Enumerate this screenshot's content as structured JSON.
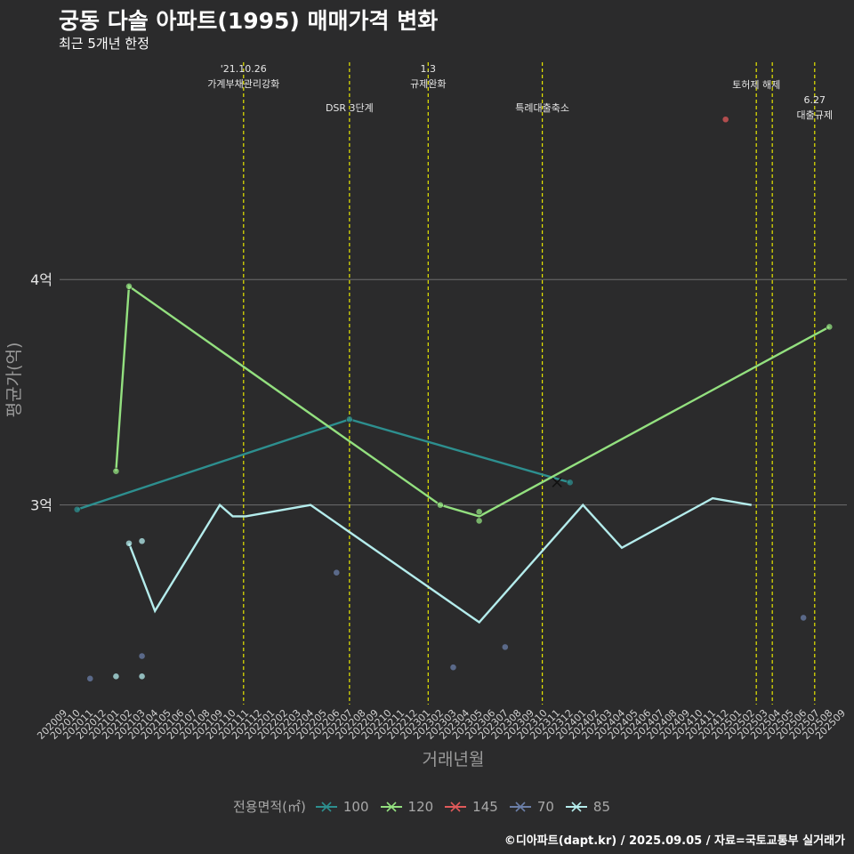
{
  "chart_data": {
    "type": "line",
    "title": "궁동 다솔 아파트(1995) 매매가격 변화",
    "subtitle": "최근 5개년 한정",
    "xlabel": "거래년월",
    "ylabel": "평균가(억)",
    "caption": "©디아파트(dapt.kr) / 2025.09.05 / 자료=국토교통부 실거래가",
    "y_ticks": [
      {
        "value": 3,
        "label": "3억"
      },
      {
        "value": 4,
        "label": "4억"
      }
    ],
    "ylim": [
      2.115,
      4.995
    ],
    "x_start": {
      "year": 2020,
      "month": 9
    },
    "x_end": {
      "year": 2025,
      "month": 9
    },
    "x_labels": [
      "202009",
      "202010",
      "202011",
      "202012",
      "202101",
      "202102",
      "202103",
      "202104",
      "202105",
      "202106",
      "202107",
      "202108",
      "202109",
      "202110",
      "202111",
      "202112",
      "202201",
      "202202",
      "202203",
      "202204",
      "202205",
      "202206",
      "202207",
      "202208",
      "202209",
      "202210",
      "202211",
      "202212",
      "202301",
      "202302",
      "202303",
      "202304",
      "202305",
      "202306",
      "202307",
      "202308",
      "202309",
      "202310",
      "202311",
      "202312",
      "202401",
      "202402",
      "202403",
      "202404",
      "202405",
      "202406",
      "202407",
      "202408",
      "202409",
      "202410",
      "202411",
      "202412",
      "202501",
      "202502",
      "202503",
      "202504",
      "202505",
      "202506",
      "202507",
      "202508",
      "202509"
    ],
    "events": [
      {
        "label": "'21.10.26\n가계부채관리강화",
        "x": "2021-10-26",
        "row": 0
      },
      {
        "label": "DSR 3단계",
        "x": "2022-07-01",
        "row": 2
      },
      {
        "label": "1.3\n규제완화",
        "x": "2023-01-03",
        "row": 0
      },
      {
        "label": "특례대출축소",
        "x": "2023-09-27",
        "row": 2
      },
      {
        "label": "토허제 해제",
        "x": "2025-02-12",
        "row": 1
      },
      {
        "label": "",
        "x": "2025-03-19",
        "row": 1
      },
      {
        "label": "6.27\n대출규제",
        "x": "2025-06-27",
        "row": 1
      }
    ],
    "legend_title": "전용면적(㎡)",
    "series": [
      {
        "name": "100",
        "color": "#2d8f8f",
        "line": [
          [
            "2020-10",
            2.98
          ],
          [
            "2022-07",
            3.38
          ],
          [
            "2023-12",
            3.1
          ]
        ],
        "points": [
          [
            "2020-10",
            2.98
          ],
          [
            "2022-07",
            3.38
          ],
          [
            "2023-12",
            3.1
          ]
        ]
      },
      {
        "name": "120",
        "color": "#93e07f",
        "line": [
          [
            "2021-01",
            3.15
          ],
          [
            "2021-02",
            3.97
          ],
          [
            "2023-02",
            3.0
          ],
          [
            "2023-05",
            2.95
          ],
          [
            "2025-08",
            3.79
          ]
        ],
        "points": [
          [
            "2021-01",
            3.15
          ],
          [
            "2021-02",
            3.97
          ],
          [
            "2023-02",
            3.0
          ],
          [
            "2023-05",
            2.97
          ],
          [
            "2023-05",
            2.93
          ],
          [
            "2025-08",
            3.79
          ]
        ]
      },
      {
        "name": "145",
        "color": "#e05a5a",
        "line": [],
        "points": [
          [
            "2024-12",
            4.71
          ]
        ]
      },
      {
        "name": "70",
        "color": "#6b7fa8",
        "line": [],
        "points": [
          [
            "2020-11",
            2.23
          ],
          [
            "2021-03",
            2.33
          ],
          [
            "2022-06",
            2.7
          ],
          [
            "2023-03",
            2.28
          ],
          [
            "2023-07",
            2.37
          ],
          [
            "2025-06",
            2.5
          ]
        ]
      },
      {
        "name": "85",
        "color": "#b4ecec",
        "line": [
          [
            "2021-02",
            2.83
          ],
          [
            "2021-04",
            2.53
          ],
          [
            "2021-09",
            3.0
          ],
          [
            "2021-10",
            2.95
          ],
          [
            "2021-11",
            2.95
          ],
          [
            "2022-04",
            3.0
          ],
          [
            "2023-05",
            2.48
          ],
          [
            "2024-01",
            3.0
          ],
          [
            "2024-04",
            2.81
          ],
          [
            "2024-11",
            3.03
          ],
          [
            "2025-02",
            3.0
          ]
        ],
        "points": [
          [
            "2021-01",
            2.24
          ],
          [
            "2021-02",
            2.83
          ],
          [
            "2021-03",
            2.84
          ],
          [
            "2021-03",
            2.24
          ]
        ]
      }
    ],
    "extra_markers": [
      {
        "series": "100",
        "x": "2023-11",
        "y": 3.1
      }
    ]
  }
}
